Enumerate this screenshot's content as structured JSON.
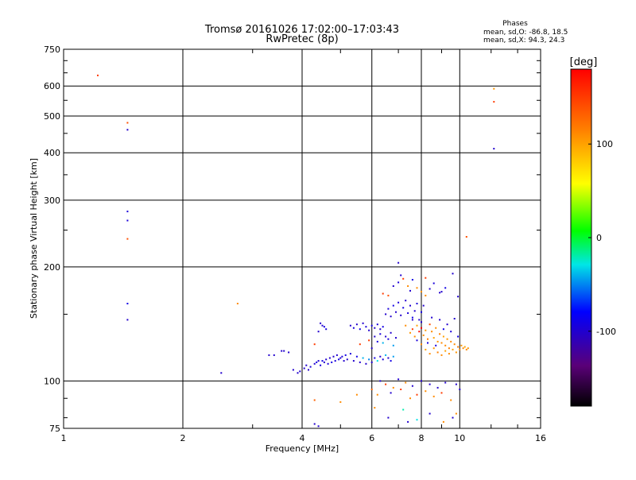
{
  "chart_data": {
    "type": "scatter",
    "title": "Tromsø 20161026 17:02:00–17:03:43",
    "subtitle": "RwPretec (8p)",
    "xlabel": "Frequency [MHz]",
    "ylabel": "Stationary phase Virtual Height [km]",
    "xscale": "log",
    "yscale": "log",
    "xlim": [
      1,
      16
    ],
    "ylim": [
      75,
      750
    ],
    "xticks": [
      1,
      2,
      4,
      6,
      8,
      10,
      16
    ],
    "yticks": [
      75,
      100,
      200,
      300,
      400,
      500,
      600,
      750
    ],
    "grid": true,
    "stats": {
      "header": "Phases",
      "line_o": "mean, sd,O: -86.8, 18.5",
      "line_x": "mean, sd,X:  94.3, 24.3"
    },
    "colorbar": {
      "label": "[deg]",
      "range": [
        -180,
        180
      ],
      "ticks": [
        100,
        0,
        -100
      ]
    },
    "points": [
      [
        1.22,
        640,
        150
      ],
      [
        1.45,
        480,
        140
      ],
      [
        1.45,
        460,
        -100
      ],
      [
        1.45,
        280,
        -95
      ],
      [
        1.45,
        265,
        -95
      ],
      [
        1.45,
        237,
        140
      ],
      [
        1.45,
        160,
        -90
      ],
      [
        1.45,
        145,
        -100
      ],
      [
        12.2,
        590,
        105
      ],
      [
        12.2,
        545,
        150
      ],
      [
        12.2,
        410,
        -100
      ],
      [
        10.4,
        240,
        140
      ],
      [
        2.75,
        160,
        110
      ],
      [
        2.5,
        105,
        -100
      ],
      [
        3.3,
        117,
        -100
      ],
      [
        3.4,
        117,
        -100
      ],
      [
        3.55,
        120,
        -100
      ],
      [
        3.6,
        120,
        -100
      ],
      [
        3.7,
        119,
        -100
      ],
      [
        3.8,
        107,
        -100
      ],
      [
        3.9,
        105,
        -100
      ],
      [
        3.95,
        106,
        -100
      ],
      [
        4.05,
        108,
        -100
      ],
      [
        4.1,
        110,
        -100
      ],
      [
        4.15,
        107,
        -100
      ],
      [
        4.2,
        109,
        -95
      ],
      [
        4.3,
        111,
        -100
      ],
      [
        4.35,
        112,
        -90
      ],
      [
        4.4,
        113,
        -100
      ],
      [
        4.45,
        110,
        -95
      ],
      [
        4.5,
        113,
        -90
      ],
      [
        4.55,
        112,
        -100
      ],
      [
        4.6,
        114,
        -100
      ],
      [
        4.65,
        111,
        -95
      ],
      [
        4.7,
        115,
        -100
      ],
      [
        4.75,
        112,
        -90
      ],
      [
        4.8,
        116,
        -100
      ],
      [
        4.85,
        113,
        -95
      ],
      [
        4.9,
        117,
        -100
      ],
      [
        4.95,
        114,
        -90
      ],
      [
        5.0,
        115,
        -100
      ],
      [
        5.05,
        116,
        -95
      ],
      [
        5.1,
        113,
        -100
      ],
      [
        5.15,
        117,
        -90
      ],
      [
        5.2,
        114,
        -100
      ],
      [
        5.3,
        118,
        -95
      ],
      [
        5.4,
        113,
        -100
      ],
      [
        5.5,
        116,
        -90
      ],
      [
        5.6,
        112,
        -100
      ],
      [
        5.7,
        115,
        -40
      ],
      [
        5.8,
        111,
        -100
      ],
      [
        5.9,
        114,
        -50
      ],
      [
        6.0,
        112,
        -100
      ],
      [
        6.1,
        115,
        -90
      ],
      [
        6.2,
        113,
        -30
      ],
      [
        6.3,
        116,
        -100
      ],
      [
        6.4,
        114,
        -95
      ],
      [
        6.5,
        117,
        -40
      ],
      [
        6.6,
        115,
        -100
      ],
      [
        6.7,
        113,
        -90
      ],
      [
        6.8,
        116,
        -45
      ],
      [
        4.4,
        135,
        -100
      ],
      [
        4.5,
        140,
        -100
      ],
      [
        4.6,
        137,
        -95
      ],
      [
        4.45,
        142,
        -100
      ],
      [
        4.55,
        139,
        -90
      ],
      [
        4.3,
        125,
        150
      ],
      [
        5.3,
        140,
        -100
      ],
      [
        5.4,
        138,
        -95
      ],
      [
        5.5,
        141,
        -100
      ],
      [
        5.6,
        137,
        -90
      ],
      [
        5.7,
        142,
        -100
      ],
      [
        5.8,
        139,
        -95
      ],
      [
        5.9,
        136,
        -100
      ],
      [
        6.0,
        140,
        -90
      ],
      [
        6.1,
        138,
        -100
      ],
      [
        6.2,
        141,
        -95
      ],
      [
        6.3,
        137,
        -100
      ],
      [
        6.4,
        139,
        -90
      ],
      [
        5.6,
        125,
        150
      ],
      [
        5.9,
        128,
        150
      ],
      [
        6.0,
        122,
        -100
      ],
      [
        6.1,
        131,
        -100
      ],
      [
        6.2,
        127,
        -90
      ],
      [
        6.3,
        133,
        -95
      ],
      [
        6.4,
        126,
        -40
      ],
      [
        6.5,
        131,
        -100
      ],
      [
        6.6,
        129,
        -95
      ],
      [
        6.7,
        134,
        -100
      ],
      [
        6.8,
        124,
        -45
      ],
      [
        6.9,
        130,
        -100
      ],
      [
        6.5,
        150,
        -100
      ],
      [
        6.6,
        155,
        -95
      ],
      [
        6.7,
        148,
        -100
      ],
      [
        6.8,
        158,
        -90
      ],
      [
        6.9,
        152,
        -100
      ],
      [
        7.0,
        161,
        -95
      ],
      [
        7.1,
        149,
        -100
      ],
      [
        7.2,
        156,
        -90
      ],
      [
        7.3,
        163,
        -100
      ],
      [
        7.4,
        151,
        -95
      ],
      [
        7.5,
        158,
        -100
      ],
      [
        7.6,
        147,
        -90
      ],
      [
        7.7,
        153,
        -100
      ],
      [
        7.8,
        160,
        -95
      ],
      [
        7.9,
        145,
        -100
      ],
      [
        8.0,
        152,
        -90
      ],
      [
        8.1,
        158,
        -100
      ],
      [
        6.4,
        170,
        150
      ],
      [
        6.6,
        168,
        140
      ],
      [
        6.8,
        178,
        -100
      ],
      [
        7.0,
        182,
        -95
      ],
      [
        7.1,
        190,
        -100
      ],
      [
        7.2,
        186,
        150
      ],
      [
        7.4,
        178,
        110
      ],
      [
        7.5,
        173,
        -100
      ],
      [
        7.6,
        185,
        -90
      ],
      [
        7.8,
        176,
        110
      ],
      [
        8.0,
        172,
        105
      ],
      [
        8.2,
        168,
        110
      ],
      [
        8.4,
        175,
        -100
      ],
      [
        8.6,
        181,
        -95
      ],
      [
        8.9,
        171,
        -100
      ],
      [
        9.0,
        172,
        -100
      ],
      [
        9.2,
        176,
        -90
      ],
      [
        9.6,
        192,
        -100
      ],
      [
        7.0,
        205,
        -100
      ],
      [
        8.2,
        187,
        150
      ],
      [
        9.9,
        167,
        -100
      ],
      [
        7.3,
        140,
        110
      ],
      [
        7.5,
        134,
        105
      ],
      [
        7.6,
        137,
        150
      ],
      [
        7.7,
        131,
        110
      ],
      [
        7.8,
        140,
        100
      ],
      [
        7.9,
        135,
        175
      ],
      [
        8.0,
        138,
        180
      ],
      [
        8.1,
        132,
        110
      ],
      [
        8.2,
        136,
        105
      ],
      [
        8.3,
        129,
        115
      ],
      [
        8.4,
        141,
        140
      ],
      [
        8.5,
        135,
        110
      ],
      [
        8.6,
        130,
        100
      ],
      [
        8.7,
        138,
        110
      ],
      [
        8.8,
        127,
        105
      ],
      [
        8.9,
        133,
        115
      ],
      [
        9.0,
        126,
        110
      ],
      [
        9.1,
        131,
        100
      ],
      [
        9.2,
        124,
        110
      ],
      [
        9.3,
        129,
        105
      ],
      [
        9.4,
        122,
        115
      ],
      [
        9.5,
        127,
        110
      ],
      [
        9.6,
        121,
        100
      ],
      [
        9.7,
        125,
        110
      ],
      [
        9.8,
        119,
        105
      ],
      [
        9.9,
        123,
        115
      ],
      [
        10.0,
        121,
        110
      ],
      [
        10.1,
        124,
        105
      ],
      [
        10.2,
        122,
        110
      ],
      [
        10.3,
        123,
        100
      ],
      [
        10.4,
        121,
        110
      ],
      [
        10.5,
        122,
        105
      ],
      [
        8.0,
        125,
        110
      ],
      [
        8.2,
        121,
        100
      ],
      [
        8.4,
        118,
        110
      ],
      [
        8.6,
        122,
        105
      ],
      [
        8.8,
        119,
        115
      ],
      [
        9.0,
        117,
        110
      ],
      [
        9.2,
        120,
        100
      ],
      [
        9.4,
        118,
        110
      ],
      [
        7.6,
        145,
        -100
      ],
      [
        7.8,
        128,
        -95
      ],
      [
        8.0,
        143,
        -100
      ],
      [
        8.3,
        126,
        -90
      ],
      [
        8.5,
        147,
        -100
      ],
      [
        8.7,
        124,
        -95
      ],
      [
        8.9,
        145,
        -100
      ],
      [
        9.1,
        137,
        -90
      ],
      [
        9.3,
        141,
        -100
      ],
      [
        9.5,
        135,
        -95
      ],
      [
        9.7,
        146,
        -100
      ],
      [
        9.9,
        131,
        -90
      ],
      [
        6.0,
        95,
        130
      ],
      [
        6.2,
        92,
        110
      ],
      [
        6.3,
        100,
        -100
      ],
      [
        6.5,
        98,
        150
      ],
      [
        6.7,
        93,
        -100
      ],
      [
        6.8,
        96,
        110
      ],
      [
        7.0,
        101,
        -100
      ],
      [
        7.1,
        95,
        150
      ],
      [
        7.3,
        99,
        110
      ],
      [
        7.5,
        90,
        110
      ],
      [
        7.6,
        97,
        -100
      ],
      [
        7.8,
        92,
        150
      ],
      [
        8.0,
        100,
        -100
      ],
      [
        8.2,
        94,
        110
      ],
      [
        8.4,
        98,
        -100
      ],
      [
        8.6,
        91,
        110
      ],
      [
        8.8,
        96,
        -100
      ],
      [
        9.0,
        93,
        150
      ],
      [
        9.2,
        99,
        -100
      ],
      [
        9.5,
        89,
        110
      ],
      [
        9.8,
        98,
        -100
      ],
      [
        10.0,
        95,
        -100
      ],
      [
        6.1,
        85,
        110
      ],
      [
        6.6,
        80,
        -100
      ],
      [
        7.2,
        84,
        -20
      ],
      [
        7.8,
        79,
        -30
      ],
      [
        8.4,
        82,
        -100
      ],
      [
        9.1,
        78,
        110
      ],
      [
        9.6,
        80,
        -100
      ],
      [
        5.0,
        88,
        110
      ],
      [
        5.5,
        92,
        110
      ],
      [
        4.3,
        89,
        130
      ],
      [
        4.3,
        77,
        -100
      ],
      [
        4.4,
        76,
        -100
      ],
      [
        7.4,
        78,
        -100
      ],
      [
        9.8,
        82,
        110
      ]
    ]
  }
}
